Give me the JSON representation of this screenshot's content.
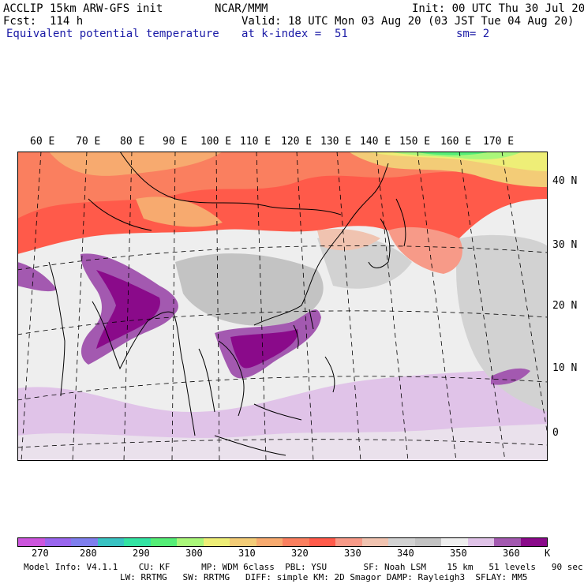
{
  "header": {
    "line1_left": "ACCLIP 15km ARW-GFS init",
    "line1_center": "NCAR/MMM",
    "line1_right": "Init: 00 UTC Thu 30 Jul 20",
    "line2_left": "Fcst:  114 h",
    "line2_right": "Valid: 18 UTC Mon 03 Aug 20 (03 JST Tue 04 Aug 20)",
    "line3_left": "Equivalent potential temperature",
    "line3_center": "at k-index =  51",
    "line3_right": "sm= 2"
  },
  "map": {
    "longitude_labels": [
      "60 E",
      "70 E",
      "80 E",
      "90 E",
      "100 E",
      "110 E",
      "120 E",
      "130 E",
      "140 E",
      "150 E",
      "160 E",
      "170 E"
    ],
    "latitude_labels": [
      "40 N",
      "30 N",
      "20 N",
      "10 N",
      "0"
    ]
  },
  "colorbar": {
    "colors": [
      "#cc55dd",
      "#9966ee",
      "#7f7fee",
      "#39c3c3",
      "#33e3a3",
      "#55ee77",
      "#aaf77a",
      "#eeee77",
      "#f3cc77",
      "#f7aa6f",
      "#fa7f5f",
      "#ff5a4a",
      "#f79a88",
      "#f0c3b0",
      "#d2d2d2",
      "#c3c3c3",
      "#eeeeee",
      "#e0c3e8",
      "#a359b0",
      "#8a0a8a"
    ],
    "labels": [
      "270",
      "280",
      "290",
      "300",
      "310",
      "320",
      "330",
      "340",
      "350",
      "360",
      "K"
    ]
  },
  "footer": {
    "line1": "Model Info: V4.1.1    CU: KF      MP: WDM 6class  PBL: YSU       SF: Noah LSM    15 km   51 levels   90 sec",
    "line2": "LW: RRTMG   SW: RRTMG   DIFF: simple KM: 2D Smagor DAMP: Rayleigh3  SFLAY: MM5"
  }
}
